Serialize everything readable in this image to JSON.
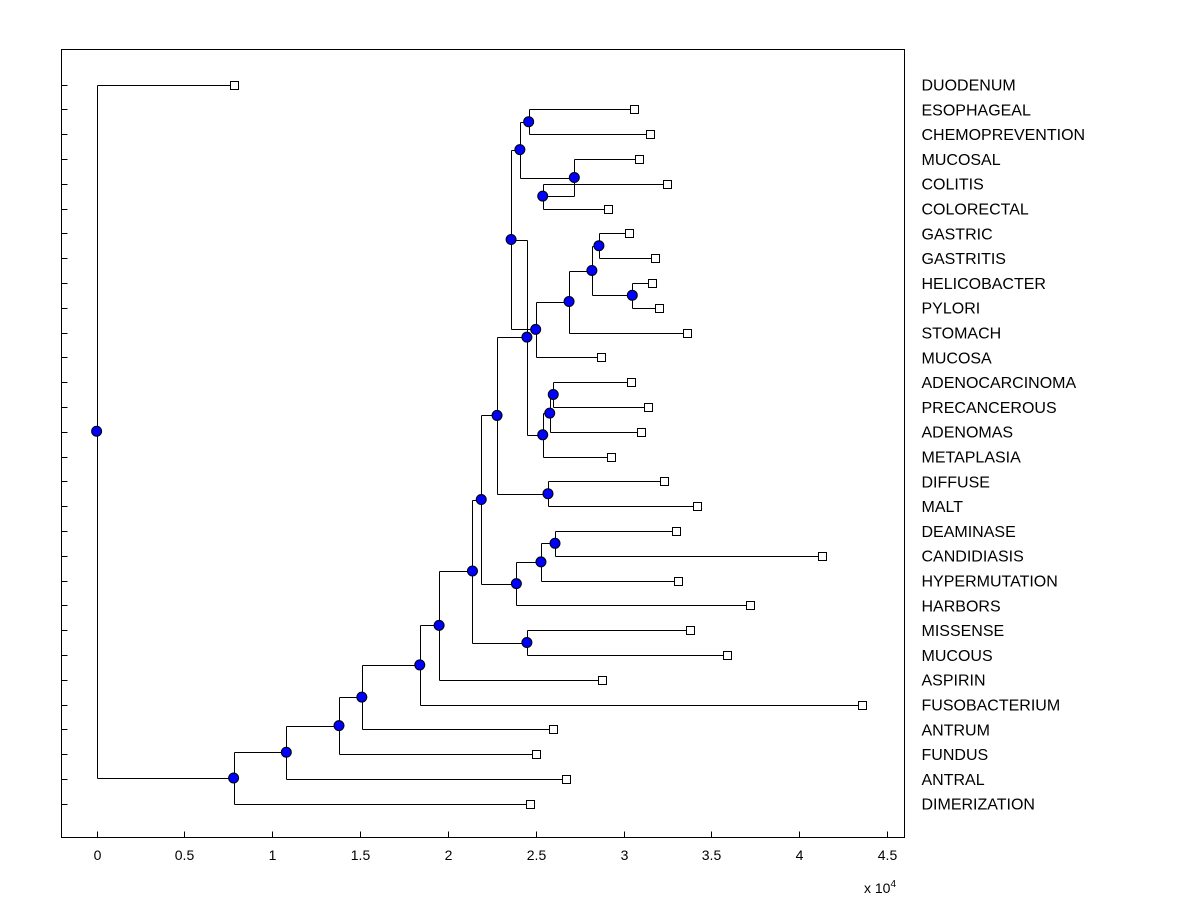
{
  "chart_data": {
    "type": "dendrogram",
    "orientation": "horizontal",
    "xlim": [
      -0.2,
      4.6
    ],
    "x_ticks": [
      {
        "value": 0,
        "label": "0"
      },
      {
        "value": 0.5,
        "label": "0.5"
      },
      {
        "value": 1,
        "label": "1"
      },
      {
        "value": 1.5,
        "label": "1.5"
      },
      {
        "value": 2,
        "label": "2"
      },
      {
        "value": 2.5,
        "label": "2.5"
      },
      {
        "value": 3,
        "label": "3"
      },
      {
        "value": 3.5,
        "label": "3.5"
      },
      {
        "value": 4,
        "label": "4"
      },
      {
        "value": 4.5,
        "label": "4.5"
      }
    ],
    "x_multiplier": {
      "base": "x 10",
      "exponent": "4"
    },
    "colors": {
      "node_fill": "#0000ff",
      "line": "#000000",
      "leaf_fill": "#ffffff"
    },
    "leaves": [
      {
        "id": "DUODENUM",
        "label": "DUODENUM",
        "x": 0.78
      },
      {
        "id": "ESOPHAGEAL",
        "label": "ESOPHAGEAL",
        "x": 3.06
      },
      {
        "id": "CHEMOPREVENTION",
        "label": "CHEMOPREVENTION",
        "x": 3.15
      },
      {
        "id": "MUCOSAL",
        "label": "MUCOSAL",
        "x": 3.09
      },
      {
        "id": "COLITIS",
        "label": "COLITIS",
        "x": 3.25
      },
      {
        "id": "COLORECTAL",
        "label": "COLORECTAL",
        "x": 2.91
      },
      {
        "id": "GASTRIC",
        "label": "GASTRIC",
        "x": 3.03
      },
      {
        "id": "GASTRITIS",
        "label": "GASTRITIS",
        "x": 3.18
      },
      {
        "id": "HELICOBACTER",
        "label": "HELICOBACTER",
        "x": 3.16
      },
      {
        "id": "PYLORI",
        "label": "PYLORI",
        "x": 3.2
      },
      {
        "id": "STOMACH",
        "label": "STOMACH",
        "x": 3.36
      },
      {
        "id": "MUCOSA",
        "label": "MUCOSA",
        "x": 2.87
      },
      {
        "id": "ADENOCARCINOMA",
        "label": "ADENOCARCINOMA",
        "x": 3.04
      },
      {
        "id": "PRECANCEROUS",
        "label": "PRECANCEROUS",
        "x": 3.14
      },
      {
        "id": "ADENOMAS",
        "label": "ADENOMAS",
        "x": 3.1
      },
      {
        "id": "METAPLASIA",
        "label": "METAPLASIA",
        "x": 2.93
      },
      {
        "id": "DIFFUSE",
        "label": "DIFFUSE",
        "x": 3.23
      },
      {
        "id": "MALT",
        "label": "MALT",
        "x": 3.42
      },
      {
        "id": "DEAMINASE",
        "label": "DEAMINASE",
        "x": 3.3
      },
      {
        "id": "CANDIDIASIS",
        "label": "CANDIDIASIS",
        "x": 4.13
      },
      {
        "id": "HYPERMUTATION",
        "label": "HYPERMUTATION",
        "x": 3.31
      },
      {
        "id": "HARBORS",
        "label": "HARBORS",
        "x": 3.72
      },
      {
        "id": "MISSENSE",
        "label": "MISSENSE",
        "x": 3.38
      },
      {
        "id": "MUCOUS",
        "label": "MUCOUS",
        "x": 3.59
      },
      {
        "id": "ASPIRIN",
        "label": "ASPIRIN",
        "x": 2.88
      },
      {
        "id": "FUSOBACTERIUM",
        "label": "FUSOBACTERIUM",
        "x": 4.36
      },
      {
        "id": "ANTRUM",
        "label": "ANTRUM",
        "x": 2.6
      },
      {
        "id": "FUNDUS",
        "label": "FUNDUS",
        "x": 2.5
      },
      {
        "id": "ANTRAL",
        "label": "ANTRAL",
        "x": 2.67
      },
      {
        "id": "DIMERIZATION",
        "label": "DIMERIZATION",
        "x": 2.47
      }
    ],
    "internal_nodes": [
      {
        "id": "n1",
        "x": 2.46,
        "children": [
          "ESOPHAGEAL",
          "CHEMOPREVENTION"
        ]
      },
      {
        "id": "n2",
        "x": 2.54,
        "children": [
          "COLITIS",
          "COLORECTAL"
        ]
      },
      {
        "id": "n3",
        "x": 2.72,
        "children": [
          "MUCOSAL",
          "n2"
        ]
      },
      {
        "id": "n4",
        "x": 2.41,
        "children": [
          "n1",
          "n3"
        ]
      },
      {
        "id": "n5",
        "x": 2.86,
        "children": [
          "GASTRIC",
          "GASTRITIS"
        ]
      },
      {
        "id": "n6",
        "x": 3.05,
        "children": [
          "HELICOBACTER",
          "PYLORI"
        ]
      },
      {
        "id": "n7",
        "x": 2.82,
        "children": [
          "n5",
          "n6"
        ]
      },
      {
        "id": "n8",
        "x": 2.69,
        "children": [
          "n7",
          "STOMACH"
        ]
      },
      {
        "id": "n9",
        "x": 2.5,
        "children": [
          "n8",
          "MUCOSA"
        ]
      },
      {
        "id": "n10",
        "x": 2.36,
        "children": [
          "n4",
          "n9"
        ]
      },
      {
        "id": "n11",
        "x": 2.6,
        "children": [
          "ADENOCARCINOMA",
          "PRECANCEROUS"
        ]
      },
      {
        "id": "n12",
        "x": 2.58,
        "children": [
          "n11",
          "ADENOMAS"
        ]
      },
      {
        "id": "n13",
        "x": 2.54,
        "children": [
          "n12",
          "METAPLASIA"
        ]
      },
      {
        "id": "n14",
        "x": 2.45,
        "children": [
          "n10",
          "n13"
        ]
      },
      {
        "id": "n15",
        "x": 2.57,
        "children": [
          "DIFFUSE",
          "MALT"
        ]
      },
      {
        "id": "n16",
        "x": 2.28,
        "children": [
          "n14",
          "n15"
        ]
      },
      {
        "id": "n17",
        "x": 2.61,
        "children": [
          "DEAMINASE",
          "CANDIDIASIS"
        ]
      },
      {
        "id": "n18",
        "x": 2.53,
        "children": [
          "n17",
          "HYPERMUTATION"
        ]
      },
      {
        "id": "n19",
        "x": 2.39,
        "children": [
          "n18",
          "HARBORS"
        ]
      },
      {
        "id": "n20",
        "x": 2.19,
        "children": [
          "n16",
          "n19"
        ]
      },
      {
        "id": "n21",
        "x": 2.45,
        "children": [
          "MISSENSE",
          "MUCOUS"
        ]
      },
      {
        "id": "n22",
        "x": 2.14,
        "children": [
          "n20",
          "n21"
        ]
      },
      {
        "id": "n23",
        "x": 1.95,
        "children": [
          "n22",
          "ASPIRIN"
        ]
      },
      {
        "id": "n24",
        "x": 1.84,
        "children": [
          "n23",
          "FUSOBACTERIUM"
        ]
      },
      {
        "id": "n25",
        "x": 1.51,
        "children": [
          "n24",
          "ANTRUM"
        ]
      },
      {
        "id": "n26",
        "x": 1.38,
        "children": [
          "n25",
          "FUNDUS"
        ]
      },
      {
        "id": "n27",
        "x": 1.08,
        "children": [
          "n26",
          "ANTRAL"
        ]
      },
      {
        "id": "n28",
        "x": 0.78,
        "children": [
          "n27",
          "DIMERIZATION"
        ]
      },
      {
        "id": "root",
        "x": 0,
        "children": [
          "DUODENUM",
          "n28"
        ]
      }
    ]
  }
}
